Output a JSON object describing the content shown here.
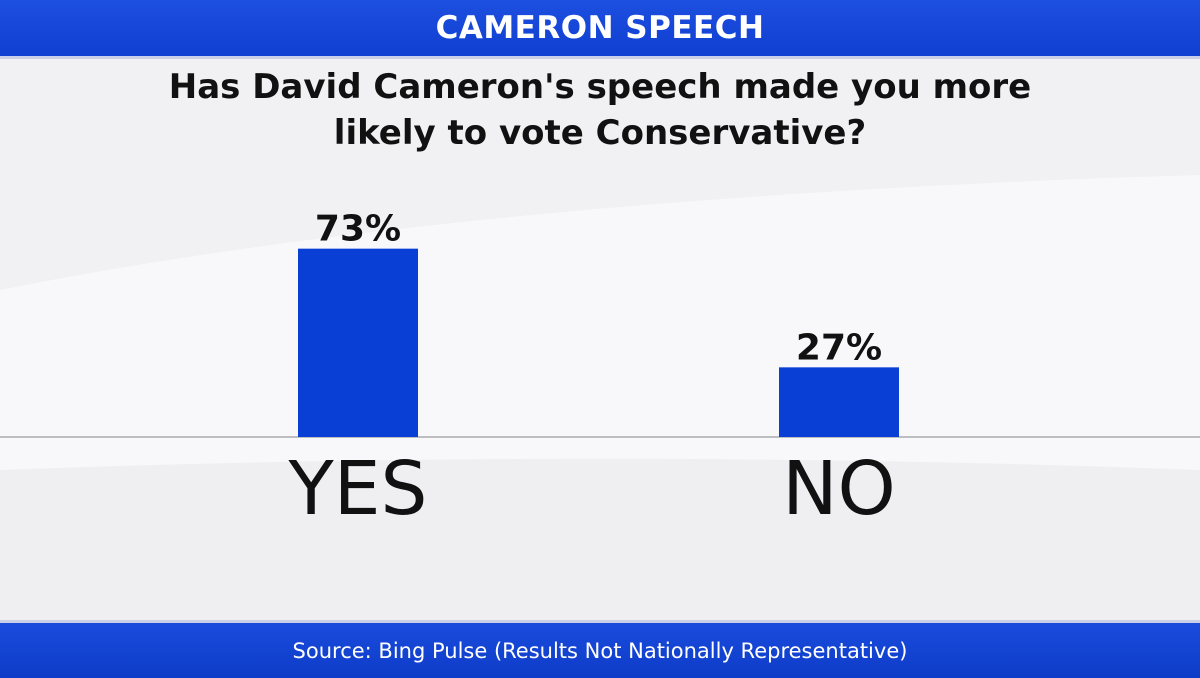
{
  "header": {
    "title": "CAMERON SPEECH"
  },
  "question": {
    "line1": "Has David Cameron's speech made you more",
    "line2": "likely to vote Conservative?"
  },
  "footer": {
    "source": "Source: Bing Pulse (Results Not Nationally Representative)"
  },
  "colors": {
    "bar": "#0a3fd6",
    "header": "#1747dd",
    "text": "#111111"
  },
  "chart_data": {
    "type": "bar",
    "title": "Has David Cameron's speech made you more likely to vote Conservative?",
    "categories": [
      "YES",
      "NO"
    ],
    "values": [
      73,
      27
    ],
    "data_labels": [
      "73%",
      "27%"
    ],
    "ylim": [
      0,
      100
    ],
    "grid": false,
    "legend": "none"
  }
}
